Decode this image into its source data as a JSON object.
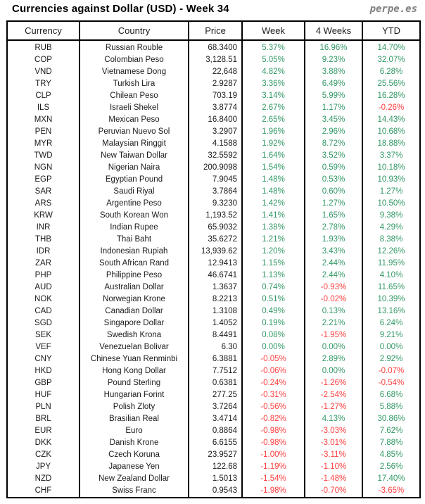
{
  "title": "Currencies against Dollar (USD) - Week 34",
  "logo": "perpe.es",
  "colors": {
    "positive": "#339966",
    "negative": "#ff4040",
    "text": "#1a1a1a",
    "border": "#000000",
    "logo_gray": "#808080"
  },
  "chart_data": {
    "type": "table",
    "title": "Currencies against Dollar (USD) - Week 34",
    "columns": [
      "Currency",
      "Country",
      "Price",
      "Week",
      "4 Weeks",
      "YTD"
    ],
    "rows": [
      [
        "RUB",
        "Russian Rouble",
        "68.3400",
        "5.37%",
        "16.96%",
        "14.70%"
      ],
      [
        "COP",
        "Colombian Peso",
        "3,128.51",
        "5.05%",
        "9.23%",
        "32.07%"
      ],
      [
        "VND",
        "Vietnamese Dong",
        "22,648",
        "4.82%",
        "3.88%",
        "6.28%"
      ],
      [
        "TRY",
        "Turkish Lira",
        "2.9287",
        "3.36%",
        "6.49%",
        "25.56%"
      ],
      [
        "CLP",
        "Chilean Peso",
        "703.19",
        "3.14%",
        "5.99%",
        "16.28%"
      ],
      [
        "ILS",
        "Israeli Shekel",
        "3.8774",
        "2.67%",
        "1.17%",
        "-0.26%"
      ],
      [
        "MXN",
        "Mexican Peso",
        "16.8400",
        "2.65%",
        "3.45%",
        "14.43%"
      ],
      [
        "PEN",
        "Peruvian Nuevo Sol",
        "3.2907",
        "1.96%",
        "2.96%",
        "10.68%"
      ],
      [
        "MYR",
        "Malaysian Ringgit",
        "4.1588",
        "1.92%",
        "8.72%",
        "18.88%"
      ],
      [
        "TWD",
        "New Taiwan Dollar",
        "32.5592",
        "1.64%",
        "3.52%",
        "3.37%"
      ],
      [
        "NGN",
        "Nigerian Naira",
        "200.9098",
        "1.54%",
        "0.59%",
        "10.18%"
      ],
      [
        "EGP",
        "Egyptian Pound",
        "7.9045",
        "1.48%",
        "0.53%",
        "10.93%"
      ],
      [
        "SAR",
        "Saudi Riyal",
        "3.7864",
        "1.48%",
        "0.60%",
        "1.27%"
      ],
      [
        "ARS",
        "Argentine Peso",
        "9.3230",
        "1.42%",
        "1.27%",
        "10.50%"
      ],
      [
        "KRW",
        "South Korean Won",
        "1,193.52",
        "1.41%",
        "1.65%",
        "9.38%"
      ],
      [
        "INR",
        "Indian Rupee",
        "65.9032",
        "1.38%",
        "2.78%",
        "4.29%"
      ],
      [
        "THB",
        "Thai Baht",
        "35.6272",
        "1.21%",
        "1.93%",
        "8.38%"
      ],
      [
        "IDR",
        "Indonesian Rupiah",
        "13,939.62",
        "1.20%",
        "3.43%",
        "12.26%"
      ],
      [
        "ZAR",
        "South African Rand",
        "12.9413",
        "1.15%",
        "2.44%",
        "11.95%"
      ],
      [
        "PHP",
        "Philippine Peso",
        "46.6741",
        "1.13%",
        "2.44%",
        "4.10%"
      ],
      [
        "AUD",
        "Australian Dollar",
        "1.3637",
        "0.74%",
        "-0.93%",
        "11.65%"
      ],
      [
        "NOK",
        "Norwegian Krone",
        "8.2213",
        "0.51%",
        "-0.02%",
        "10.39%"
      ],
      [
        "CAD",
        "Canadian Dollar",
        "1.3108",
        "0.49%",
        "0.13%",
        "13.16%"
      ],
      [
        "SGD",
        "Singapore Dollar",
        "1.4052",
        "0.19%",
        "2.21%",
        "6.24%"
      ],
      [
        "SEK",
        "Swedish Krona",
        "8.4491",
        "0.08%",
        "-1.95%",
        "9.21%"
      ],
      [
        "VEF",
        "Venezuelan Bolivar",
        "6.30",
        "0.00%",
        "0.00%",
        "0.00%"
      ],
      [
        "CNY",
        "Chinese Yuan Renminbi",
        "6.3881",
        "-0.05%",
        "2.89%",
        "2.92%"
      ],
      [
        "HKD",
        "Hong Kong Dollar",
        "7.7512",
        "-0.06%",
        "0.00%",
        "-0.07%"
      ],
      [
        "GBP",
        "Pound Sterling",
        "0.6381",
        "-0.24%",
        "-1.26%",
        "-0.54%"
      ],
      [
        "HUF",
        "Hungarian Forint",
        "277.25",
        "-0.31%",
        "-2.54%",
        "6.68%"
      ],
      [
        "PLN",
        "Polish Zloty",
        "3.7264",
        "-0.56%",
        "-1.27%",
        "5.88%"
      ],
      [
        "BRL",
        "Brasilian Real",
        "3.4714",
        "-0.82%",
        "4.13%",
        "30.86%"
      ],
      [
        "EUR",
        "Euro",
        "0.8864",
        "-0.98%",
        "-3.03%",
        "7.62%"
      ],
      [
        "DKK",
        "Danish Krone",
        "6.6155",
        "-0.98%",
        "-3.01%",
        "7.88%"
      ],
      [
        "CZK",
        "Czech Koruna",
        "23.9527",
        "-1.00%",
        "-3.11%",
        "4.85%"
      ],
      [
        "JPY",
        "Japanese Yen",
        "122.68",
        "-1.19%",
        "-1.10%",
        "2.56%"
      ],
      [
        "NZD",
        "New Zealand Dollar",
        "1.5013",
        "-1.54%",
        "-1.48%",
        "17.40%"
      ],
      [
        "CHF",
        "Swiss Franc",
        "0.9543",
        "-1.98%",
        "-0.70%",
        "-3.65%"
      ]
    ]
  }
}
